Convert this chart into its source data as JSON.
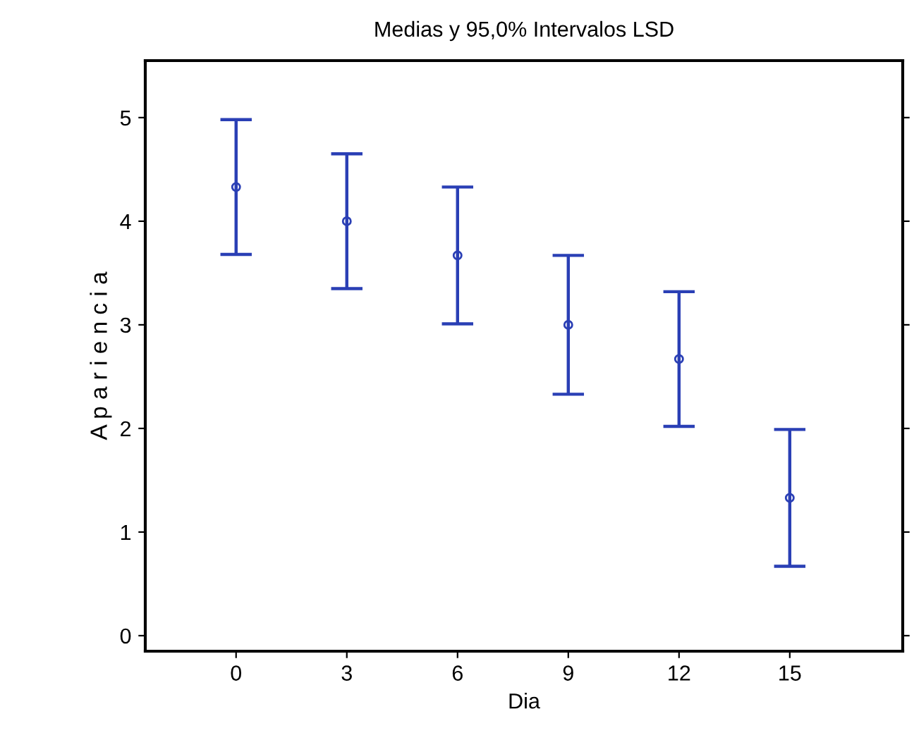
{
  "chart_data": {
    "type": "scatter",
    "title": "Medias y 95,0% Intervalos LSD",
    "xlabel": "Dia",
    "ylabel": "A p a r i e n c i a",
    "categories": [
      "0",
      "3",
      "6",
      "9",
      "12",
      "15"
    ],
    "series": [
      {
        "color": "#2a3fb5",
        "values": [
          4.33,
          4.0,
          3.67,
          3.0,
          2.67,
          1.33
        ],
        "errors": [
          0.65,
          0.65,
          0.66,
          0.67,
          0.65,
          0.66
        ]
      }
    ],
    "marker": "circle",
    "ylim": [
      -0.15,
      5.55
    ],
    "yticks": [
      0,
      1,
      2,
      3,
      4,
      5
    ],
    "grid": false,
    "legend": false
  }
}
